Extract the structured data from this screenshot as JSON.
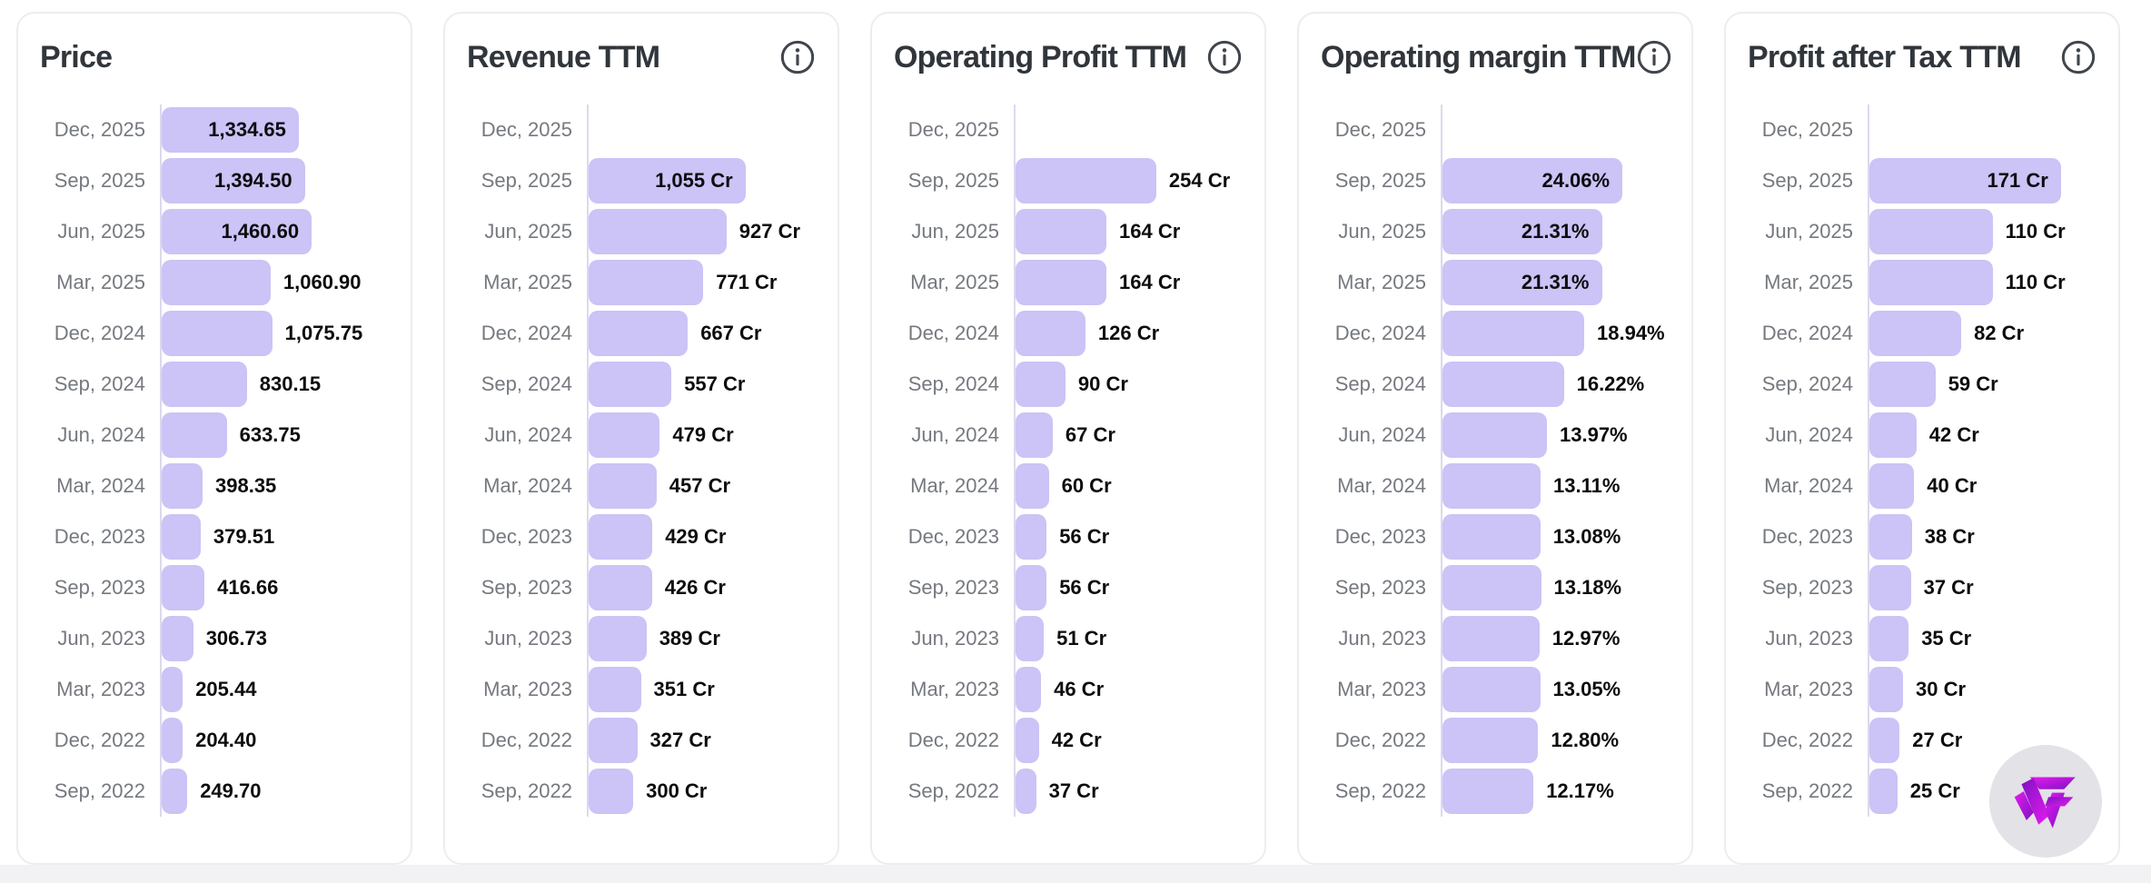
{
  "colors": {
    "bar_fill": "#ccc3f6",
    "axis_line": "#dcd9ee",
    "title_text": "#30363b",
    "category_text": "#75797f",
    "value_text": "#0c0d0f",
    "card_border": "#ededf1",
    "logo_circle": "#e3e2e6",
    "logo_magenta": "#e61bf0",
    "logo_purple": "#7d13c0"
  },
  "categories": [
    "Dec, 2025",
    "Sep, 2025",
    "Jun, 2025",
    "Mar, 2025",
    "Dec, 2024",
    "Sep, 2024",
    "Jun, 2024",
    "Mar, 2024",
    "Dec, 2023",
    "Sep, 2023",
    "Jun, 2023",
    "Mar, 2023",
    "Dec, 2022",
    "Sep, 2022"
  ],
  "chart_data": [
    {
      "type": "bar",
      "orientation": "horizontal",
      "title": "Price",
      "info_icon": false,
      "unit": "",
      "values": [
        1334.65,
        1394.5,
        1460.6,
        1060.9,
        1075.75,
        830.15,
        633.75,
        398.35,
        379.51,
        416.66,
        306.73,
        205.44,
        204.4,
        249.7
      ],
      "labels": [
        "1,334.65",
        "1,394.50",
        "1,460.60",
        "1,060.90",
        "1,075.75",
        "830.15",
        "633.75",
        "398.35",
        "379.51",
        "416.66",
        "306.73",
        "205.44",
        "204.40",
        "249.70"
      ]
    },
    {
      "type": "bar",
      "orientation": "horizontal",
      "title": "Revenue TTM",
      "info_icon": true,
      "unit": "Cr",
      "values": [
        null,
        1055,
        927,
        771,
        667,
        557,
        479,
        457,
        429,
        426,
        389,
        351,
        327,
        300
      ],
      "labels": [
        null,
        "1,055 Cr",
        "927 Cr",
        "771 Cr",
        "667 Cr",
        "557 Cr",
        "479 Cr",
        "457 Cr",
        "429 Cr",
        "426 Cr",
        "389 Cr",
        "351 Cr",
        "327 Cr",
        "300 Cr"
      ]
    },
    {
      "type": "bar",
      "orientation": "horizontal",
      "title": "Operating Profit TTM",
      "info_icon": true,
      "unit": "Cr",
      "values": [
        null,
        254,
        164,
        164,
        126,
        90,
        67,
        60,
        56,
        56,
        51,
        46,
        42,
        37
      ],
      "labels": [
        null,
        "254 Cr",
        "164 Cr",
        "164 Cr",
        "126 Cr",
        "90 Cr",
        "67 Cr",
        "60 Cr",
        "56 Cr",
        "56 Cr",
        "51 Cr",
        "46 Cr",
        "42 Cr",
        "37 Cr"
      ]
    },
    {
      "type": "bar",
      "orientation": "horizontal",
      "title": "Operating margin TTM",
      "info_icon": true,
      "unit": "%",
      "values": [
        null,
        24.06,
        21.31,
        21.31,
        18.94,
        16.22,
        13.97,
        13.11,
        13.08,
        13.18,
        12.97,
        13.05,
        12.8,
        12.17
      ],
      "labels": [
        null,
        "24.06%",
        "21.31%",
        "21.31%",
        "18.94%",
        "16.22%",
        "13.97%",
        "13.11%",
        "13.08%",
        "13.18%",
        "12.97%",
        "13.05%",
        "12.80%",
        "12.17%"
      ]
    },
    {
      "type": "bar",
      "orientation": "horizontal",
      "title": "Profit after Tax TTM",
      "info_icon": true,
      "unit": "Cr",
      "values": [
        null,
        171,
        110,
        110,
        82,
        59,
        42,
        40,
        38,
        37,
        35,
        30,
        27,
        25
      ],
      "labels": [
        null,
        "171 Cr",
        "110 Cr",
        "110 Cr",
        "82 Cr",
        "59 Cr",
        "42 Cr",
        "40 Cr",
        "38 Cr",
        "37 Cr",
        "35 Cr",
        "30 Cr",
        "27 Cr",
        "25 Cr"
      ]
    }
  ]
}
